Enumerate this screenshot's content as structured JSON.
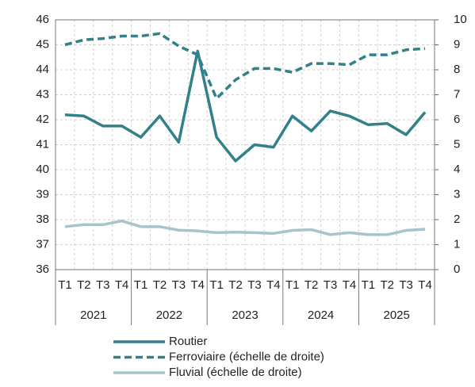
{
  "chart_data": {
    "type": "line",
    "categories": [
      "T1",
      "T2",
      "T3",
      "T4",
      "T1",
      "T2",
      "T3",
      "T4",
      "T1",
      "T2",
      "T3",
      "T4",
      "T1",
      "T2",
      "T3",
      "T4",
      "T1",
      "T2",
      "T3",
      "T4"
    ],
    "years": [
      "2021",
      "2022",
      "2023",
      "2024",
      "2025"
    ],
    "series": [
      {
        "name": "Routier",
        "color": "#31808a",
        "dash": false,
        "values": [
          42.2,
          42.15,
          41.75,
          41.75,
          41.3,
          42.15,
          41.1,
          44.75,
          41.3,
          40.35,
          41.0,
          40.9,
          42.15,
          41.55,
          42.35,
          42.15,
          41.8,
          41.85,
          41.4,
          42.3
        ]
      },
      {
        "name": "Ferroviaire (échelle de droite)",
        "color": "#31808a",
        "dash": true,
        "axis": "y2",
        "values": [
          9.0,
          9.2,
          9.25,
          9.35,
          9.35,
          9.45,
          8.95,
          8.6,
          6.85,
          7.6,
          8.05,
          8.05,
          7.9,
          8.25,
          8.25,
          8.2,
          8.6,
          8.6,
          8.8,
          8.85
        ]
      },
      {
        "name": "Fluvial (échelle de droite)",
        "color": "#a8c3cb",
        "dash": false,
        "axis": "y2",
        "values": [
          1.72,
          1.8,
          1.8,
          1.95,
          1.72,
          1.72,
          1.58,
          1.55,
          1.48,
          1.5,
          1.48,
          1.45,
          1.57,
          1.6,
          1.4,
          1.48,
          1.4,
          1.4,
          1.57,
          1.62
        ]
      }
    ],
    "ylim": [
      36,
      46
    ],
    "yticks": [
      36,
      37,
      38,
      39,
      40,
      41,
      42,
      43,
      44,
      45,
      46
    ],
    "y2lim": [
      0,
      10
    ],
    "y2ticks": [
      0,
      1,
      2,
      3,
      4,
      5,
      6,
      7,
      8,
      9,
      10
    ],
    "grid": true
  }
}
